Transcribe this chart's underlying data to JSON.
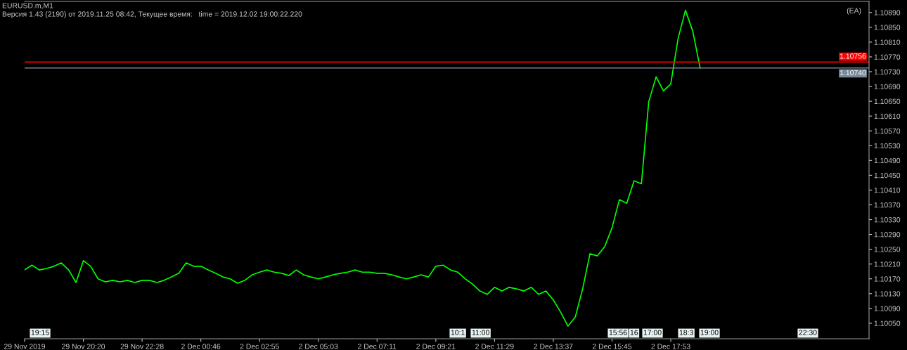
{
  "chart_data": {
    "type": "line",
    "title": "EURUSD.m,M1",
    "subtitle": "Версия 1.43 (2190) от 2019.11.25 08:42, Текущее время:   time = 2019.12.02 19:00:22.220",
    "categories": [
      "29 Nov 2019",
      null,
      null,
      null,
      null,
      null,
      null,
      null,
      "29 Nov 20:20",
      null,
      null,
      null,
      null,
      null,
      null,
      null,
      "29 Nov 22:28",
      null,
      null,
      null,
      null,
      null,
      null,
      null,
      "2 Dec 00:46",
      null,
      null,
      null,
      null,
      null,
      null,
      null,
      "2 Dec 02:55",
      null,
      null,
      null,
      null,
      null,
      null,
      null,
      "2 Dec 05:03",
      null,
      null,
      null,
      null,
      null,
      null,
      null,
      "2 Dec 07:11",
      null,
      null,
      null,
      null,
      null,
      null,
      null,
      "2 Dec 09:21",
      null,
      null,
      null,
      null,
      null,
      null,
      null,
      "2 Dec 11:29",
      null,
      null,
      null,
      null,
      null,
      null,
      null,
      "2 Dec 13:37",
      null,
      null,
      null,
      null,
      null,
      null,
      null,
      "2 Dec 15:45",
      null,
      null,
      null,
      null,
      null,
      null,
      null,
      "2 Dec 17:53",
      null,
      null,
      null,
      null,
      null,
      null,
      null,
      null,
      null,
      null,
      null,
      null,
      null,
      null,
      null,
      null,
      null,
      null,
      null,
      null,
      null,
      null,
      null,
      null,
      null,
      null,
      null
    ],
    "series": [
      {
        "color": "#00ff00",
        "values": [
          1.10194,
          1.10207,
          1.10194,
          1.10198,
          1.10204,
          1.10213,
          1.10194,
          1.1016,
          1.10219,
          1.10204,
          1.1017,
          1.10162,
          1.10166,
          1.10162,
          1.10166,
          1.1016,
          1.10166,
          1.10166,
          1.1016,
          1.10166,
          1.10175,
          1.10185,
          1.10213,
          1.10204,
          1.10204,
          1.10194,
          1.10185,
          1.10175,
          1.1017,
          1.10158,
          1.10166,
          1.10181,
          1.10188,
          1.10194,
          1.10188,
          1.10185,
          1.10179,
          1.10194,
          1.10181,
          1.10175,
          1.1017,
          1.10175,
          1.10181,
          1.10185,
          1.10188,
          1.10194,
          1.10188,
          1.10188,
          1.10185,
          1.10185,
          1.10181,
          1.10175,
          1.1017,
          1.10175,
          1.10181,
          1.10175,
          1.10204,
          1.10207,
          1.10194,
          1.10188,
          1.1017,
          1.10156,
          1.10137,
          1.10128,
          1.10147,
          1.10137,
          1.10147,
          1.10143,
          1.10137,
          1.10147,
          1.10128,
          1.10137,
          1.10113,
          1.1008,
          1.10042,
          1.10067,
          1.10143,
          1.10238,
          1.10232,
          1.10257,
          1.10308,
          1.10384,
          1.10374,
          1.10435,
          1.10427,
          1.10649,
          1.10716,
          1.10678,
          1.10697,
          1.1082,
          1.10896,
          1.10839,
          1.1074,
          null,
          null,
          null,
          null,
          null,
          null,
          null,
          null,
          null,
          null,
          null,
          null,
          null,
          null,
          null,
          null,
          null,
          null,
          null,
          null,
          null,
          null,
          null
        ]
      }
    ],
    "ylim": [
      1.10008,
      1.1092
    ],
    "yticks": [
      {
        "value": 1.1005,
        "label": "1.10050"
      },
      {
        "value": 1.1009,
        "label": "1.10090"
      },
      {
        "value": 1.1013,
        "label": "1.10130"
      },
      {
        "value": 1.1017,
        "label": "1.10170"
      },
      {
        "value": 1.1021,
        "label": "1.10210"
      },
      {
        "value": 1.1025,
        "label": "1.10250"
      },
      {
        "value": 1.1029,
        "label": "1.10290"
      },
      {
        "value": 1.1033,
        "label": "1.10330"
      },
      {
        "value": 1.1037,
        "label": "1.10370"
      },
      {
        "value": 1.1041,
        "label": "1.10410"
      },
      {
        "value": 1.1045,
        "label": "1.10450"
      },
      {
        "value": 1.1049,
        "label": "1.10490"
      },
      {
        "value": 1.1053,
        "label": "1.10530"
      },
      {
        "value": 1.1057,
        "label": "1.10570"
      },
      {
        "value": 1.1061,
        "label": "1.10610"
      },
      {
        "value": 1.1065,
        "label": "1.10650"
      },
      {
        "value": 1.1069,
        "label": "1.10690"
      },
      {
        "value": 1.1073,
        "label": "1.10730"
      },
      {
        "value": 1.1077,
        "label": "1.10770"
      },
      {
        "value": 1.1081,
        "label": "1.10810"
      },
      {
        "value": 1.1085,
        "label": "1.10850"
      },
      {
        "value": 1.1089,
        "label": "1.10890"
      }
    ],
    "ref_lines": [
      {
        "axis": "y",
        "value": 1.10756,
        "label": "1.10756",
        "color": "#ff0000"
      },
      {
        "axis": "y",
        "value": 1.1074,
        "label": "1.10740",
        "color": "#778899"
      }
    ],
    "annotations": [
      "(EA)",
      "19:15",
      "10:1",
      "11:00",
      "15:56",
      "16",
      "17:00",
      "18:3",
      "19:00",
      "22:30"
    ],
    "grid": false,
    "marker": "none",
    "line_style": "solid"
  }
}
